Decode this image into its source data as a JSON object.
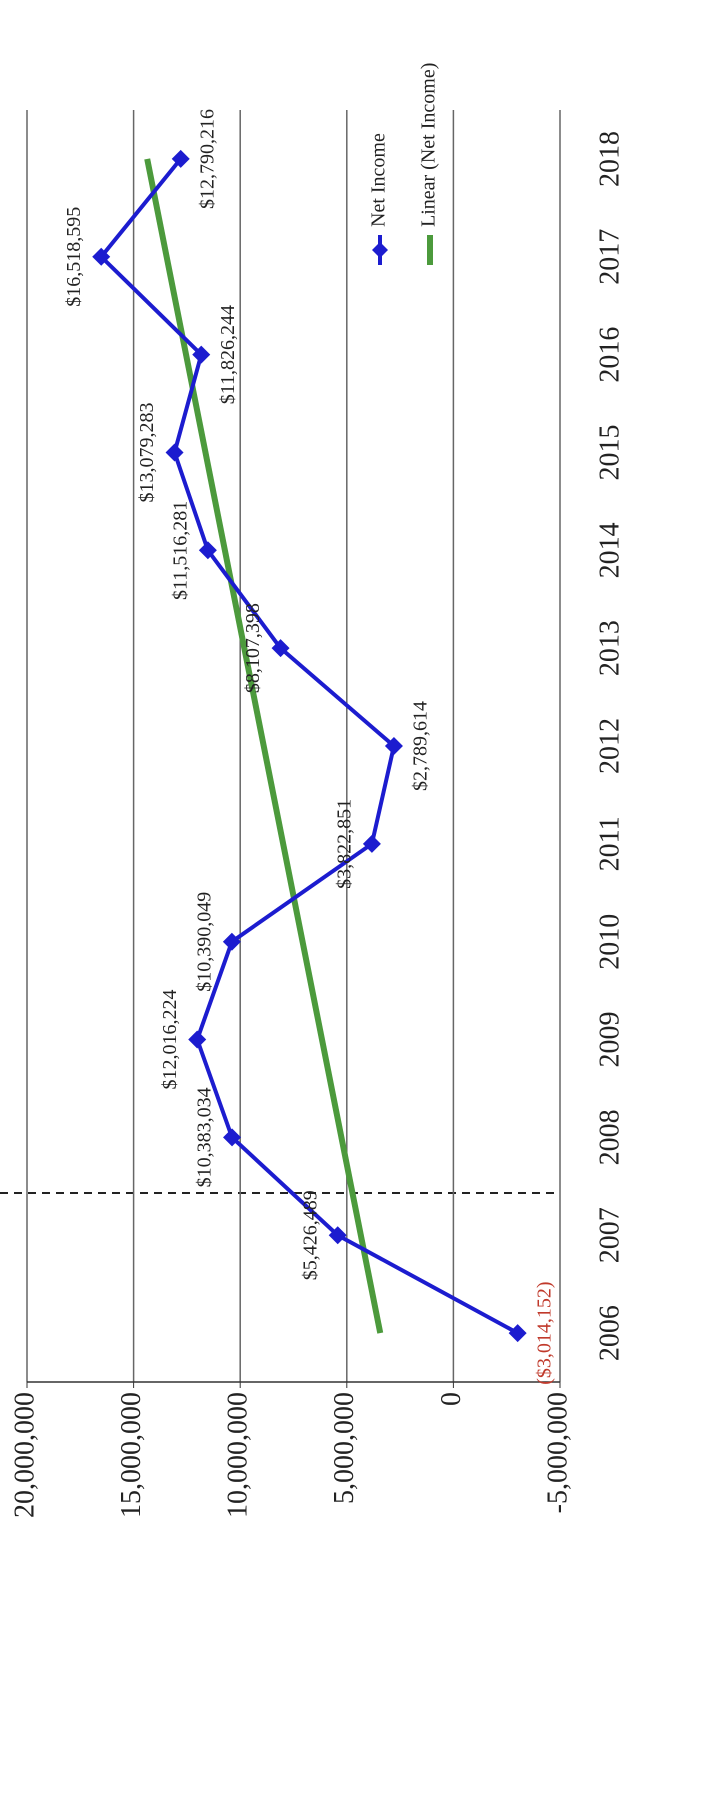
{
  "chart_data": {
    "type": "line",
    "categories": [
      "2006",
      "2007",
      "2008",
      "2009",
      "2010",
      "2011",
      "2012",
      "2013",
      "2014",
      "2015",
      "2016",
      "2017",
      "2018"
    ],
    "series": [
      {
        "name": "Net Income",
        "color": "#1c1ccf",
        "values": [
          -3014152,
          5426489,
          10383034,
          12016224,
          10390049,
          3822851,
          2789614,
          8107398,
          11516281,
          13079283,
          11826244,
          16518595,
          12790216
        ],
        "value_labels": [
          "($3,014,152)",
          "$5,426,489",
          "$10,383,034",
          "$12,016,224",
          "$10,390,049",
          "$3,822,851",
          "$2,789,614",
          "$8,107,398",
          "$11,516,281",
          "$13,079,283",
          "$11,826,244",
          "$16,518,595",
          "$12,790,216"
        ],
        "negative_label_color": "#c0392b"
      }
    ],
    "trendline": {
      "name": "Linear (Net Income)",
      "color": "#4c9a3c"
    },
    "ylim": [
      -5000000,
      20000000
    ],
    "yticks": [
      {
        "value": -5000000,
        "label": "-5,000,000"
      },
      0,
      {
        "value": 5000000,
        "label": "5,000,000"
      },
      {
        "value": 10000000,
        "label": "10,000,000"
      },
      {
        "value": 15000000,
        "label": "15,000,000"
      },
      {
        "value": 20000000,
        "label": "20,000,000"
      }
    ],
    "grid": true,
    "legend": "right"
  }
}
